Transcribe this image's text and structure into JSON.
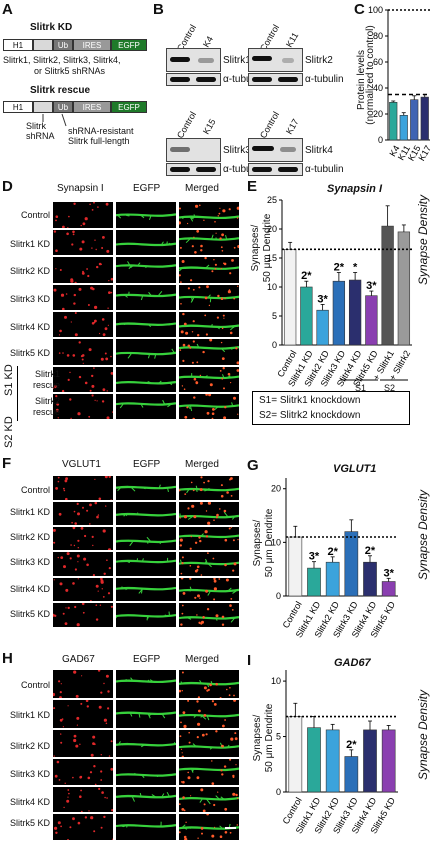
{
  "panelA": {
    "label": "A",
    "kd_title": "Slitrk KD",
    "kd_construct": [
      "H1",
      "",
      "Ub",
      "IRES",
      "EGFP"
    ],
    "kd_caption_1": "Slitrk1, Slitrk2, Slitrk3, Slitrk4,",
    "kd_caption_2": "or Slitrk5 shRNAs",
    "rescue_title": "Slitrk rescue",
    "rescue_construct": [
      "H1",
      "",
      "Ub",
      "IRES",
      "EGFP"
    ],
    "rescue_caption_left_1": "Slitrk",
    "rescue_caption_left_2": "shRNA",
    "rescue_caption_right_1": "shRNA-resistant",
    "rescue_caption_right_2": "Slitrk full-length"
  },
  "panelB": {
    "label": "B",
    "blots": [
      {
        "lanes": [
          "Control",
          "K4"
        ],
        "target": "Slitrk1",
        "loading": "α-tubulin"
      },
      {
        "lanes": [
          "Control",
          "K11"
        ],
        "target": "Slitrk2",
        "loading": "α-tubulin"
      },
      {
        "lanes": [
          "Control",
          "K15"
        ],
        "target": "Slitrk3",
        "loading": "α-tubulin"
      },
      {
        "lanes": [
          "Control",
          "K17"
        ],
        "target": "Slitrk4",
        "loading": "α-tubulin"
      }
    ]
  },
  "panelC": {
    "label": "C",
    "ylabel_1": "Protein levels",
    "ylabel_2": "(normalized to control)",
    "ticks": [
      "0",
      "20",
      "40",
      "60",
      "80",
      "100"
    ]
  },
  "panelD": {
    "label": "D",
    "columns": [
      "Synapsin I",
      "EGFP",
      "Merged"
    ],
    "rows": [
      "Control",
      "Slitrk1 KD",
      "Slitrk2 KD",
      "Slitrk3 KD",
      "Slitrk4 KD",
      "Slitrk5 KD",
      "Slitrk1 rescue",
      "Slitrk2 rescue"
    ],
    "group_s1": "S1 KD",
    "group_s2": "S2 KD"
  },
  "panelE": {
    "label": "E",
    "title": "Synapsin I",
    "ylabel_1": "Synapses/",
    "ylabel_2": "50 μm Dendrite",
    "side_label": "Synapse Density",
    "ticks": [
      "0",
      "5",
      "10",
      "15",
      "20",
      "25"
    ],
    "group_labels": [
      "S1",
      "S2"
    ],
    "legend_1": "S1= Slitrk1 knockdown",
    "legend_2": "S2= Slitrk2 knockdown"
  },
  "panelF": {
    "label": "F",
    "columns": [
      "VGLUT1",
      "EGFP",
      "Merged"
    ],
    "rows": [
      "Control",
      "Slitrk1 KD",
      "Slitrk2 KD",
      "Slitrk3 KD",
      "Slitrk4 KD",
      "Slitrk5 KD"
    ]
  },
  "panelG": {
    "label": "G",
    "title": "VGLUT1",
    "ylabel_1": "Synapses/",
    "ylabel_2": "50 μm Dendrite",
    "side_label": "Synapse Density",
    "ticks": [
      "0",
      "10",
      "20"
    ]
  },
  "panelH": {
    "label": "H",
    "columns": [
      "GAD67",
      "EGFP",
      "Merged"
    ],
    "rows": [
      "Control",
      "Slitrk1 KD",
      "Slitrk2 KD",
      "Slitrk3 KD",
      "Slitrk4 KD",
      "Slitrk5 KD"
    ]
  },
  "panelI": {
    "label": "I",
    "title": "GAD67",
    "ylabel_1": "Synapses/",
    "ylabel_2": "50 μm Dendrite",
    "side_label": "Synapse Density",
    "ticks": [
      "0",
      "5",
      "10"
    ]
  },
  "chart_data": [
    {
      "type": "bar",
      "categories": [
        "K4",
        "K11",
        "K15",
        "K17"
      ],
      "values": [
        29,
        19,
        31,
        33
      ],
      "errors": [
        1,
        2,
        3,
        2
      ],
      "colors": [
        "#2aa89a",
        "#3ba3dc",
        "#3f63b3",
        "#2b2f6e"
      ],
      "reference_line": 100,
      "threshold_line": 35,
      "ylim": [
        0,
        100
      ],
      "annotations": [
        "",
        "",
        "",
        ""
      ]
    },
    {
      "type": "bar",
      "categories": [
        "Control",
        "Slitrk1 KD",
        "Slitrk2 KD",
        "Slitrk3 KD",
        "Slitrk4 KD",
        "Slitrk5 KD",
        "+ Slitrk1",
        "+ Slitrk2"
      ],
      "values": [
        16.5,
        10,
        6,
        11,
        11.2,
        8.5,
        20.5,
        19.5
      ],
      "errors": [
        1.2,
        1.0,
        1.0,
        1.5,
        1.3,
        0.8,
        3.5,
        1.2
      ],
      "colors": [
        "#f2f2f2",
        "#2aa89a",
        "#3ba3dc",
        "#2b6fb8",
        "#2b2f6e",
        "#8a3fb0",
        "#555555",
        "#9a9a9a"
      ],
      "reference_line": 16.5,
      "ylim": [
        0,
        25
      ],
      "annotations": [
        "",
        "2*",
        "3*",
        "2*",
        "*",
        "3*",
        "",
        ""
      ]
    },
    {
      "type": "bar",
      "categories": [
        "Control",
        "Slitrk1 KD",
        "Slitrk2 KD",
        "Slitrk3 KD",
        "Slitrk4 KD",
        "Slitrk5 KD"
      ],
      "values": [
        11,
        5.2,
        6.3,
        12,
        6.3,
        2.7
      ],
      "errors": [
        2,
        1.2,
        1.0,
        2.2,
        1.2,
        0.6
      ],
      "colors": [
        "#f2f2f2",
        "#2aa89a",
        "#3ba3dc",
        "#2b6fb8",
        "#2b2f6e",
        "#8a3fb0"
      ],
      "reference_line": 11,
      "ylim": [
        0,
        22
      ],
      "annotations": [
        "",
        "3*",
        "2*",
        "",
        "2*",
        "3*"
      ]
    },
    {
      "type": "bar",
      "categories": [
        "Control",
        "Slitrk1 KD",
        "Slitrk2 KD",
        "Slitrk3 KD",
        "Slitrk4 KD",
        "Slitrk5 KD"
      ],
      "values": [
        6.8,
        5.8,
        5.6,
        3.2,
        5.6,
        5.6
      ],
      "errors": [
        1.2,
        1.0,
        0.5,
        0.6,
        0.8,
        0.4
      ],
      "colors": [
        "#f2f2f2",
        "#2aa89a",
        "#3ba3dc",
        "#2b6fb8",
        "#2b2f6e",
        "#8a3fb0"
      ],
      "reference_line": 6.8,
      "ylim": [
        0,
        11
      ],
      "annotations": [
        "",
        "",
        "",
        "2*",
        "",
        ""
      ]
    }
  ]
}
